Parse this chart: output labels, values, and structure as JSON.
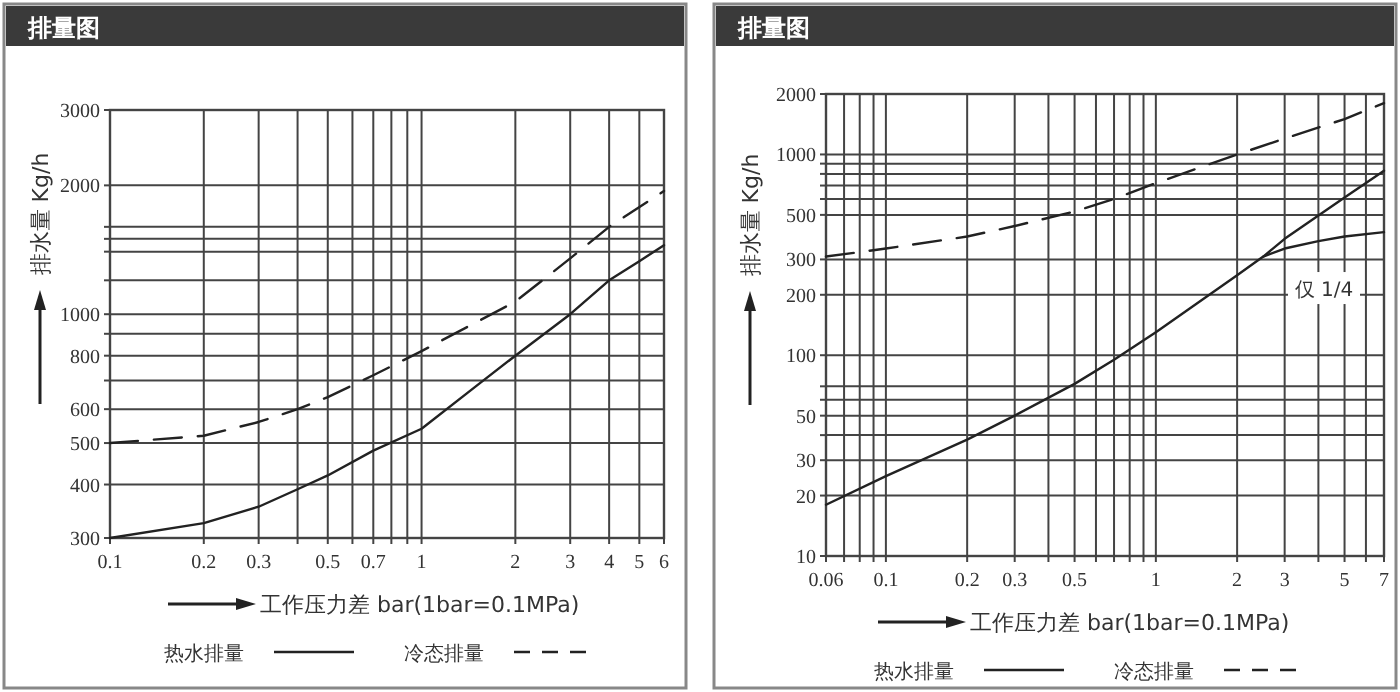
{
  "chart_data": [
    {
      "type": "line",
      "title": "排量图",
      "xlabel": "工作压力差 bar(1bar=0.1MPa)",
      "ylabel": "排水量 Kg/h",
      "log": "xy",
      "grid": true,
      "legend": "bottom",
      "marker": "none",
      "xlim": [
        0.1,
        6
      ],
      "xticks": [
        0.1,
        0.2,
        0.3,
        {
          "value": 0.4,
          "label": null
        },
        0.5,
        {
          "value": 0.6,
          "label": null
        },
        0.7,
        {
          "value": 0.8,
          "label": null
        },
        {
          "value": 0.9,
          "label": null
        },
        1,
        2,
        3,
        4,
        5,
        6
      ],
      "ylim": [
        300,
        3000
      ],
      "yticks": [
        300,
        400,
        500,
        600,
        {
          "value": 700,
          "label": null
        },
        800,
        {
          "value": 900,
          "label": null
        },
        1000,
        {
          "value": 1200,
          "label": null
        },
        {
          "value": 1400,
          "label": null
        },
        {
          "value": 1500,
          "label": null
        },
        {
          "value": 1600,
          "label": null
        },
        2000,
        3000
      ],
      "series": [
        {
          "name": "热水排量",
          "color": "#222222",
          "line_style": "solid",
          "x": [
            0.1,
            0.2,
            0.3,
            0.4,
            0.5,
            0.7,
            1,
            1.5,
            2,
            3,
            4,
            5,
            6
          ],
          "values": [
            300,
            325,
            355,
            390,
            420,
            480,
            540,
            680,
            800,
            1000,
            1200,
            1330,
            1450
          ]
        },
        {
          "name": "冷态排量",
          "color": "#222222",
          "line_style": "dashed",
          "x": [
            0.1,
            0.2,
            0.3,
            0.4,
            0.5,
            0.7,
            1,
            2,
            3,
            4,
            6
          ],
          "values": [
            500,
            520,
            560,
            600,
            640,
            720,
            820,
            1070,
            1350,
            1600,
            1940
          ]
        }
      ]
    },
    {
      "type": "line",
      "title": "排量图",
      "xlabel": "工作压力差 bar(1bar=0.1MPa)",
      "ylabel": "排水量 Kg/h",
      "log": "xy",
      "grid": true,
      "legend": "bottom",
      "marker": "none",
      "xlim": [
        0.06,
        7
      ],
      "xticks": [
        0.06,
        {
          "value": 0.07,
          "label": null
        },
        {
          "value": 0.08,
          "label": null
        },
        {
          "value": 0.09,
          "label": null
        },
        0.1,
        0.2,
        0.3,
        {
          "value": 0.4,
          "label": null
        },
        0.5,
        {
          "value": 0.6,
          "label": null
        },
        {
          "value": 0.7,
          "label": null
        },
        {
          "value": 0.8,
          "label": null
        },
        {
          "value": 0.9,
          "label": null
        },
        1,
        2,
        3,
        {
          "value": 4,
          "label": null
        },
        5,
        {
          "value": 6,
          "label": null
        },
        7
      ],
      "ylim": [
        10,
        2000
      ],
      "yticks": [
        10,
        20,
        30,
        {
          "value": 40,
          "label": null
        },
        50,
        {
          "value": 60,
          "label": null
        },
        {
          "value": 70,
          "label": null
        },
        100,
        200,
        300,
        500,
        {
          "value": 600,
          "label": null
        },
        {
          "value": 700,
          "label": null
        },
        {
          "value": 800,
          "label": null
        },
        {
          "value": 900,
          "label": null
        },
        1000,
        2000
      ],
      "annotations": [
        "仅 1/4"
      ],
      "series": [
        {
          "name": "热水排量",
          "color": "#222222",
          "line_style": "solid",
          "x": [
            0.06,
            0.1,
            0.2,
            0.3,
            0.5,
            0.7,
            1,
            2,
            2.5,
            3,
            5,
            7
          ],
          "values": [
            18,
            25,
            38,
            50,
            72,
            95,
            130,
            250,
            310,
            380,
            610,
            830
          ]
        },
        {
          "name": "冷态排量",
          "color": "#222222",
          "line_style": "dashed",
          "x": [
            0.06,
            0.1,
            0.2,
            0.3,
            0.5,
            0.7,
            1,
            2,
            3,
            5,
            7
          ],
          "values": [
            310,
            340,
            390,
            440,
            520,
            600,
            720,
            1000,
            1200,
            1500,
            1800
          ]
        },
        {
          "color": "#222222",
          "line_style": "solid",
          "x": [
            2.5,
            3,
            4,
            5,
            7
          ],
          "values": [
            310,
            340,
            370,
            390,
            410
          ]
        }
      ]
    }
  ]
}
